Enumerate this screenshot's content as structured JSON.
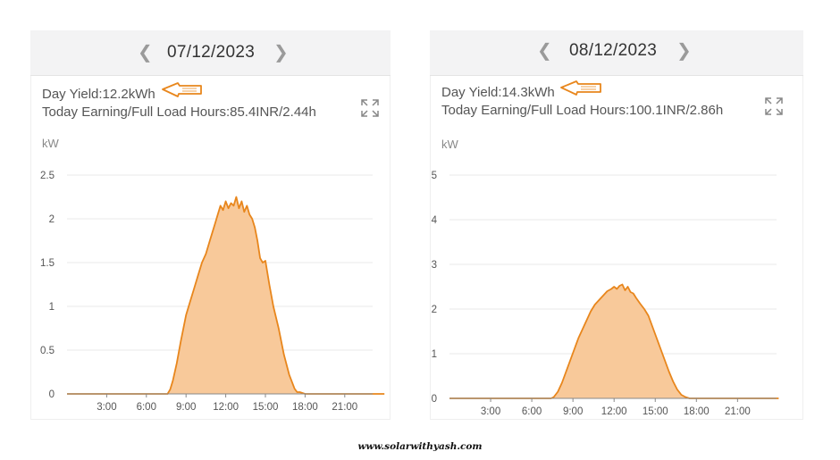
{
  "colors": {
    "accent": "#e8861c",
    "fill": "#f8c99a",
    "grid": "#e9e9e9",
    "axis": "#888888"
  },
  "icons": {
    "prev": "chevron-left-icon",
    "next": "chevron-right-icon",
    "expand": "expand-icon",
    "arrow": "hand-drawn-arrow-icon"
  },
  "panels": [
    {
      "date": "07/12/2023",
      "yield_text": "Day Yield:12.2kWh",
      "earning_text": "Today Earning/Full Load Hours:85.4INR/2.44h",
      "unit": "kW"
    },
    {
      "date": "08/12/2023",
      "yield_text": "Day Yield:14.3kWh",
      "earning_text": "Today Earning/Full Load Hours:100.1INR/2.86h",
      "unit": "kW"
    }
  ],
  "chart_data": [
    {
      "type": "area",
      "xlabel": "",
      "ylabel": "kW",
      "xlim": [
        0,
        24
      ],
      "ylim": [
        0,
        2.5
      ],
      "x_ticks": [
        "3:00",
        "6:00",
        "9:00",
        "12:00",
        "15:00",
        "18:00",
        "21:00"
      ],
      "y_ticks": [
        "0",
        "0.5",
        "1",
        "1.5",
        "2",
        "2.5"
      ],
      "grid": true,
      "series": [
        {
          "x": [
            0,
            7.6,
            7.8,
            8.0,
            8.3,
            8.6,
            9.0,
            9.3,
            9.6,
            9.9,
            10.2,
            10.5,
            10.8,
            11.0,
            11.2,
            11.4,
            11.6,
            11.8,
            12.0,
            12.2,
            12.4,
            12.6,
            12.8,
            13.0,
            13.2,
            13.4,
            13.6,
            13.8,
            14.0,
            14.2,
            14.4,
            14.6,
            14.8,
            15.0,
            15.3,
            15.6,
            16.0,
            16.4,
            16.8,
            17.2,
            17.4,
            17.6,
            18.0,
            24
          ],
          "y": [
            0,
            0,
            0.05,
            0.15,
            0.35,
            0.6,
            0.9,
            1.05,
            1.2,
            1.35,
            1.5,
            1.6,
            1.75,
            1.85,
            1.95,
            2.05,
            2.15,
            2.1,
            2.2,
            2.12,
            2.18,
            2.15,
            2.25,
            2.12,
            2.2,
            2.08,
            2.15,
            2.05,
            2.0,
            1.9,
            1.75,
            1.55,
            1.5,
            1.52,
            1.25,
            1.0,
            0.75,
            0.45,
            0.22,
            0.06,
            0.02,
            0.02,
            0.0,
            0
          ]
        }
      ]
    },
    {
      "type": "area",
      "xlabel": "",
      "ylabel": "kW",
      "xlim": [
        0,
        24
      ],
      "ylim": [
        0,
        5
      ],
      "x_ticks": [
        "3:00",
        "6:00",
        "9:00",
        "12:00",
        "15:00",
        "18:00",
        "21:00"
      ],
      "y_ticks": [
        "0",
        "1",
        "2",
        "3",
        "4",
        "5"
      ],
      "grid": true,
      "series": [
        {
          "x": [
            0,
            7.4,
            7.6,
            7.9,
            8.2,
            8.5,
            8.8,
            9.1,
            9.4,
            9.7,
            10.0,
            10.3,
            10.6,
            10.9,
            11.2,
            11.5,
            11.8,
            12.0,
            12.2,
            12.4,
            12.6,
            12.8,
            13.0,
            13.2,
            13.4,
            13.6,
            13.9,
            14.2,
            14.5,
            14.8,
            15.1,
            15.4,
            15.7,
            16.0,
            16.3,
            16.6,
            16.9,
            17.2,
            17.5,
            18.0,
            24
          ],
          "y": [
            0,
            0,
            0.03,
            0.15,
            0.35,
            0.6,
            0.85,
            1.1,
            1.35,
            1.55,
            1.75,
            1.95,
            2.1,
            2.2,
            2.3,
            2.4,
            2.45,
            2.5,
            2.45,
            2.52,
            2.55,
            2.42,
            2.5,
            2.38,
            2.35,
            2.25,
            2.12,
            2.0,
            1.85,
            1.6,
            1.35,
            1.1,
            0.85,
            0.6,
            0.38,
            0.2,
            0.08,
            0.03,
            0.0,
            0.0,
            0
          ]
        }
      ]
    }
  ],
  "footer": "www.solarwithyash.com"
}
